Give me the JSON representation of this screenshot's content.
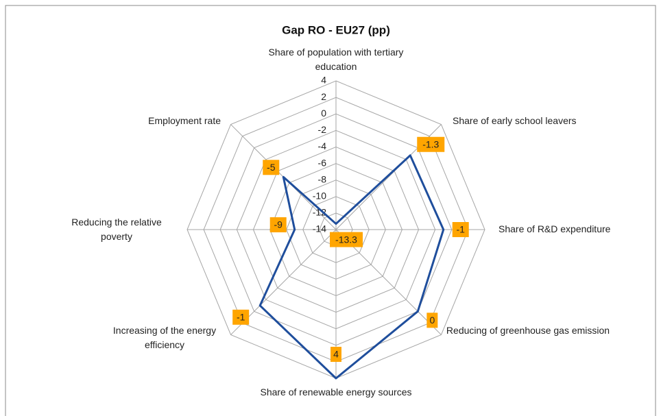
{
  "chart_data": {
    "type": "radar",
    "title": "Gap RO - EU27 (pp)",
    "categories": [
      "Share of population with tertiary education",
      "Share of early school leavers",
      "Share of R&D expenditure",
      "Reducing of greenhouse gas emission",
      "Share of renewable energy sources",
      "Increasing of the energy efficiency",
      "Reducing the relative poverty",
      "Employment rate"
    ],
    "series": [
      {
        "name": "Gap RO - EU27",
        "color": "#1f4e9c",
        "values": [
          -13.3,
          -1.3,
          -1,
          0,
          4,
          -1,
          -9,
          -5
        ]
      }
    ],
    "ylim": [
      -14,
      4
    ],
    "yticks": [
      -14,
      -12,
      -10,
      -8,
      -6,
      -4,
      -2,
      0,
      2,
      4
    ],
    "grid": true,
    "label_color": "#ffa500"
  }
}
